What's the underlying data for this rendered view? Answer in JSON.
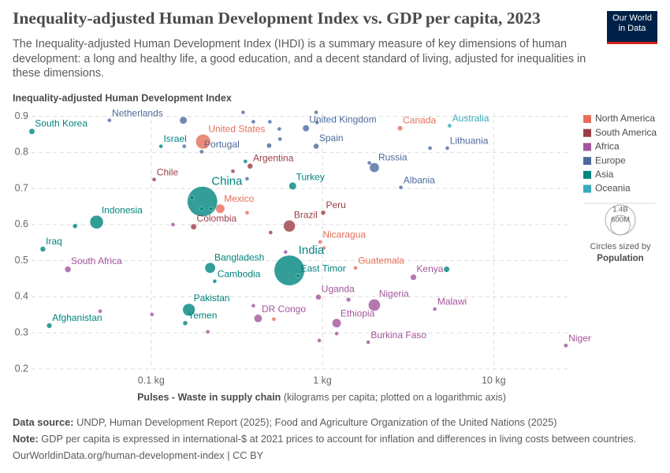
{
  "chart_data": {
    "type": "scatter",
    "title": "Inequality-adjusted Human Development Index vs. GDP per capita, 2023",
    "subtitle": "The Inequality-adjusted Human Development Index (IHDI) is a summary measure of key dimensions of human development: a long and healthy life, a good education, and a decent standard of living, adjusted for inequalities in these dimensions.",
    "ylabel": "Inequality-adjusted Human Development Index",
    "xlabel": "Pulses - Waste in supply chain",
    "xlabel_note": "(kilograms per capita; plotted on a logarithmic axis)",
    "log_x": true,
    "grid": true,
    "legend": "right",
    "xlim": [
      0.02,
      27
    ],
    "ylim": [
      0.2,
      0.91
    ],
    "xticks": [
      {
        "value": 0.1,
        "label": "0.1 kg"
      },
      {
        "value": 1,
        "label": "1 kg"
      },
      {
        "value": 10,
        "label": "10 kg"
      }
    ],
    "yticks": [
      0.2,
      0.3,
      0.4,
      0.5,
      0.6,
      0.7,
      0.8,
      0.9
    ],
    "size_legend": [
      {
        "value": 1400000000,
        "label": "1.4B"
      },
      {
        "value": 600000000,
        "label": "600M"
      }
    ],
    "size_caption": "Circles sized by",
    "size_variable": "Population",
    "series": [
      {
        "name": "North America",
        "color": "#e56e5a",
        "x": [
          0.201,
          2.84,
          0.253,
          0.969,
          1.56,
          1.02,
          0.363,
          0.52
        ],
        "values": [
          0.83,
          0.867,
          0.644,
          0.552,
          0.48,
          0.535,
          0.633,
          0.338
        ],
        "sizes": [
          335000000,
          39000000,
          128000000,
          7000000,
          18000000,
          10000000,
          3000000,
          6000000
        ],
        "labels": [
          "United States",
          "Canada",
          "Mexico",
          "Nicaragua",
          "Guatemala",
          null,
          null,
          null
        ]
      },
      {
        "name": "South America",
        "color": "#9a3d45",
        "x": [
          0.378,
          0.104,
          0.641,
          1.01,
          0.177,
          0.498,
          0.3
        ],
        "values": [
          0.762,
          0.725,
          0.596,
          0.633,
          0.594,
          0.578,
          0.748
        ],
        "sizes": [
          46000000,
          20000000,
          216000000,
          34000000,
          52000000,
          7000000,
          3000000
        ],
        "labels": [
          "Argentina",
          "Chile",
          "Brazil",
          "Peru",
          "Colombia",
          null,
          null
        ]
      },
      {
        "name": "Africa",
        "color": "#a2559c",
        "x": [
          0.0326,
          0.948,
          2.01,
          3.4,
          4.53,
          0.421,
          1.21,
          1.85,
          26.4,
          0.134,
          0.609,
          0.101,
          0.0503,
          1.42,
          0.958,
          1.21,
          0.395,
          0.214
        ],
        "values": [
          0.476,
          0.399,
          0.377,
          0.454,
          0.366,
          0.34,
          0.327,
          0.274,
          0.265,
          0.6,
          0.524,
          0.351,
          0.36,
          0.392,
          0.279,
          0.298,
          0.375,
          0.303
        ],
        "sizes": [
          60000000,
          48000000,
          224000000,
          55000000,
          21000000,
          102000000,
          127000000,
          23000000,
          27000000,
          3000000,
          2000000,
          3000000,
          2000000,
          30000000,
          3000000,
          14000000,
          2000000,
          2000000
        ],
        "labels": [
          "South Africa",
          "Uganda",
          "Nigeria",
          "Kenya",
          "Malawi",
          "DR Congo",
          "Ethiopia",
          "Burkina Faso",
          "Niger",
          null,
          null,
          null,
          null,
          null,
          null,
          null,
          null,
          null
        ]
      },
      {
        "name": "Europe",
        "color": "#4c6a9c",
        "x": [
          0.057,
          0.801,
          0.197,
          0.919,
          2.01,
          5.36,
          2.87,
          0.154,
          0.344,
          0.395,
          0.493,
          0.56,
          0.919,
          0.929,
          0.156,
          0.488,
          0.565,
          0.363,
          4.25,
          1.88
        ],
        "values": [
          0.889,
          0.867,
          0.802,
          0.817,
          0.758,
          0.812,
          0.703,
          0.889,
          0.911,
          0.885,
          0.885,
          0.865,
          0.911,
          0.883,
          0.817,
          0.819,
          0.837,
          0.727,
          0.812,
          0.771
        ],
        "sizes": [
          18000000,
          68000000,
          10000000,
          48000000,
          144000000,
          2800000,
          2800000,
          84000000,
          5000000,
          9000000,
          11000000,
          17000000,
          5000000,
          6000000,
          10000000,
          38000000,
          20000000,
          4000000,
          1900000,
          3000000
        ],
        "labels": [
          "Netherlands",
          "United Kingdom",
          "Portugal",
          "Spain",
          "Russia",
          "Lithuania",
          "Albania",
          null,
          null,
          null,
          null,
          null,
          null,
          null,
          null,
          null,
          null,
          null,
          null,
          null
        ]
      },
      {
        "name": "Asia",
        "color": "#00847e",
        "x": [
          0.0201,
          0.199,
          0.048,
          0.67,
          0.0233,
          0.114,
          0.221,
          0.235,
          0.641,
          0.721,
          0.166,
          0.158,
          0.0254,
          0.173,
          0.197,
          0.223,
          0.0359,
          5.31,
          0.355
        ],
        "values": [
          0.858,
          0.664,
          0.607,
          0.707,
          0.532,
          0.817,
          0.48,
          0.443,
          0.473,
          0.458,
          0.364,
          0.327,
          0.32,
          0.675,
          0.644,
          0.644,
          0.596,
          0.476,
          0.775
        ],
        "sizes": [
          52000000,
          1410000000,
          278000000,
          86000000,
          45000000,
          10000000,
          171000000,
          17000000,
          1430000000,
          1300000,
          240000000,
          34000000,
          42000000,
          30000000,
          30000000,
          20000000,
          34000000,
          54000000,
          5000000
        ],
        "labels": [
          "South Korea",
          "China",
          "Indonesia",
          "Turkey",
          "Iraq",
          "Israel",
          "Bangladesh",
          "Cambodia",
          "India",
          "East Timor",
          "Pakistan",
          "Yemen",
          "Afghanistan",
          null,
          null,
          null,
          null,
          null,
          null
        ]
      },
      {
        "name": "Oceania",
        "color": "#38aaba",
        "x": [
          5.53
        ],
        "values": [
          0.874
        ],
        "sizes": [
          27000000
        ],
        "labels": [
          "Australia"
        ]
      }
    ]
  },
  "logo": {
    "line1": "Our World",
    "line2": "in Data"
  },
  "footer": {
    "source_label": "Data source:",
    "source": "UNDP, Human Development Report (2025); Food and Agriculture Organization of the United Nations (2025)",
    "note_label": "Note:",
    "note": "GDP per capita is expressed in international-$ at 2021 prices to account for inflation and differences in living costs between countries.",
    "url": "OurWorldinData.org/human-development-index | CC BY"
  }
}
